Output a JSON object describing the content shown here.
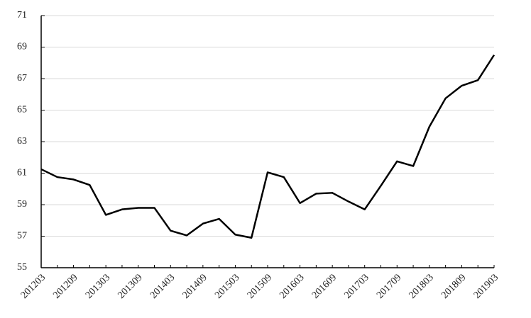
{
  "chart_data": {
    "type": "line",
    "categories": [
      "201203",
      null,
      "201209",
      null,
      "201303",
      null,
      "201309",
      null,
      "201403",
      null,
      "201409",
      null,
      "201503",
      null,
      "201509",
      null,
      "201603",
      null,
      "201609",
      null,
      "201703",
      null,
      "201709",
      null,
      "201803",
      null,
      "201809",
      null,
      "201903"
    ],
    "series": [
      {
        "color": "#000000",
        "values": [
          61.25,
          60.75,
          60.6,
          60.25,
          58.35,
          58.7,
          58.8,
          58.8,
          57.35,
          57.05,
          57.8,
          58.1,
          57.1,
          56.9,
          61.05,
          60.75,
          59.1,
          59.7,
          59.75,
          59.2,
          58.7,
          60.2,
          61.75,
          61.45,
          63.95,
          65.75,
          66.55,
          66.9,
          68.5
        ]
      }
    ],
    "ylim": [
      55,
      71
    ],
    "yticks": [
      55,
      57,
      59,
      61,
      63,
      65,
      67,
      69,
      71
    ],
    "grid": true
  }
}
